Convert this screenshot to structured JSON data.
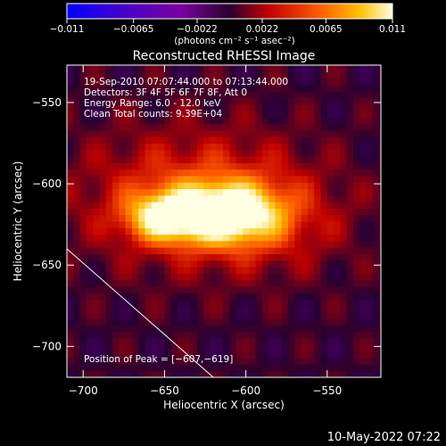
{
  "chart_data": {
    "type": "heatmap",
    "title": "Reconstructed RHESSI Image",
    "xlabel": "Heliocentric X (arcsec)",
    "ylabel": "Heliocentric Y (arcsec)",
    "xlim": [
      -710,
      -517
    ],
    "ylim": [
      -719,
      -527
    ],
    "xticks": [
      -700,
      -650,
      -600,
      -550
    ],
    "yticks": [
      -550,
      -600,
      -650,
      -700
    ],
    "colorbar": {
      "ticks": [
        -0.011,
        -0.0065,
        -0.0022,
        0.0022,
        0.0065,
        0.011
      ],
      "tick_labels": [
        "−0.011",
        "−0.0065",
        "−0.0022",
        "0.0022",
        "0.0065",
        "0.011"
      ],
      "unit_label": "(photons cm⁻² s⁻¹ asec⁻²)",
      "range": [
        -0.011,
        0.011
      ]
    },
    "annotations": [
      "19-Sep-2010 07:07:44.000 to 07:13:44.000",
      "Detectors: 3F 4F 5F 6F 7F 8F, Att 0",
      "Energy Range: 6.0 - 12.0 keV",
      "Clean    Total counts: 9.39E+04"
    ],
    "peak_label": "Position of Peak = [−607,−619]",
    "peak": [
      -607,
      -619
    ],
    "sources": [
      {
        "x": -612,
        "y": -618,
        "sx": 22,
        "sy": 12,
        "amp": 0.0105
      },
      {
        "x": -650,
        "y": -620,
        "sx": 16,
        "sy": 10,
        "amp": 0.008
      },
      {
        "x": -630,
        "y": -608,
        "sx": 50,
        "sy": 28,
        "amp": 0.0045
      },
      {
        "x": -590,
        "y": -625,
        "sx": 35,
        "sy": 20,
        "amp": 0.002
      }
    ],
    "background": 0.0002,
    "limb_line": [
      [
        -710,
        -640
      ],
      [
        -620,
        -719
      ]
    ]
  },
  "footer": {
    "timestamp": "10-May-2022 07:22"
  }
}
